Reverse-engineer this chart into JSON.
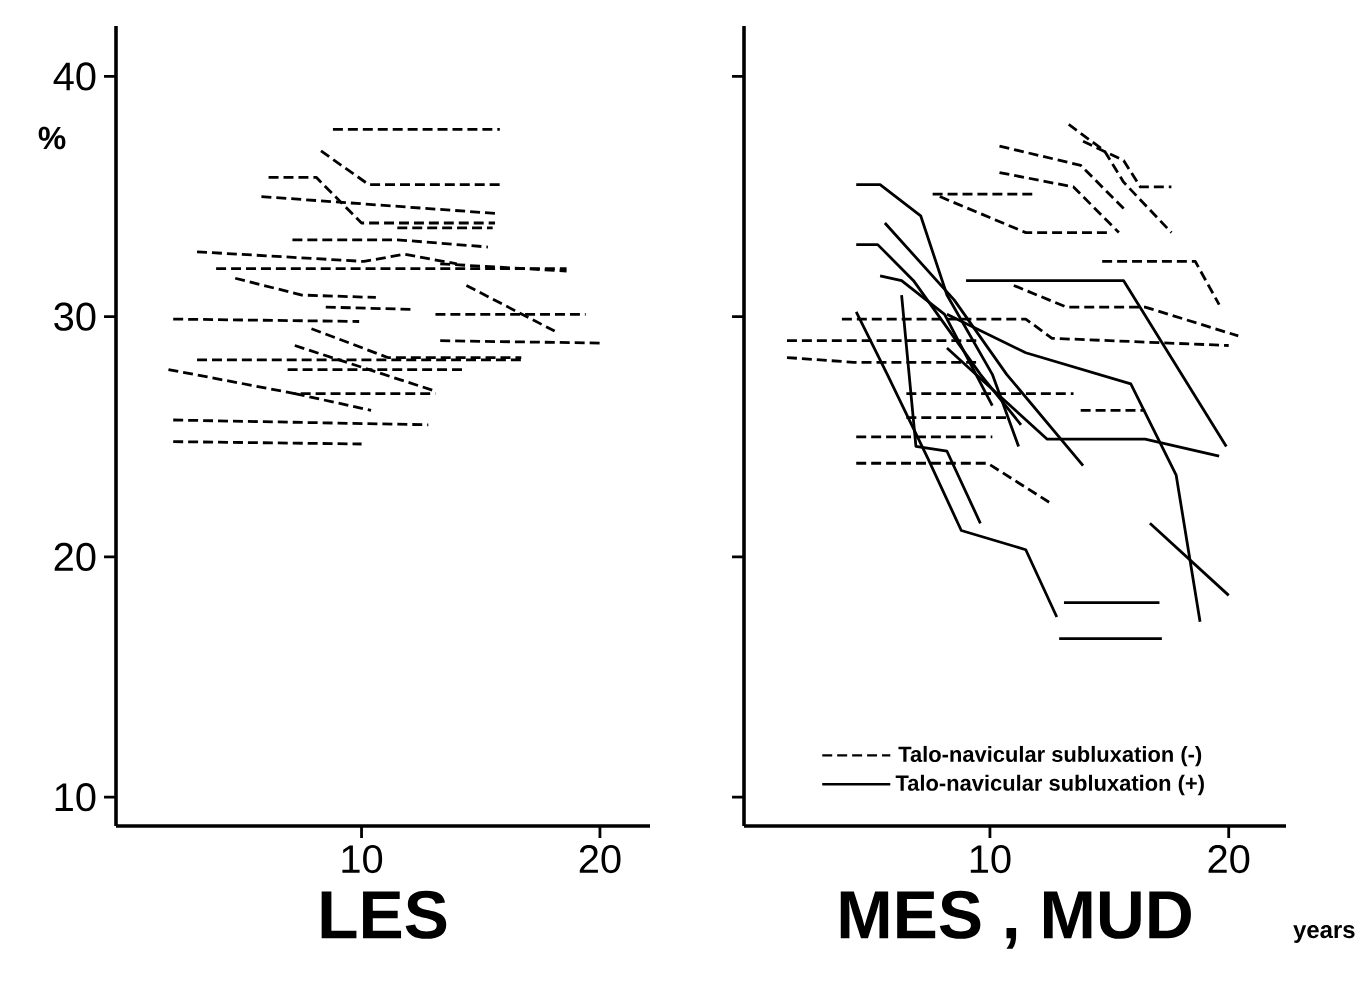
{
  "chart_data": [
    {
      "type": "line",
      "xlabel": "LES",
      "ylabel": "%",
      "xlim": [
        -0.3,
        22.1
      ],
      "ylim": [
        8.8,
        42.1
      ],
      "xticks": [
        10,
        20
      ],
      "yticks": [
        10,
        20,
        30,
        40
      ],
      "series": [
        {
          "color": "#000000",
          "line_style": "dashed",
          "x": [
            8.8,
            15.8
          ],
          "values": [
            37.8,
            37.8
          ]
        },
        {
          "color": "#000000",
          "line_style": "dashed",
          "x": [
            8.3,
            10.3,
            15.8
          ],
          "values": [
            36.9,
            35.5,
            35.5
          ]
        },
        {
          "color": "#000000",
          "line_style": "dashed",
          "x": [
            6.1,
            8.1,
            10.0,
            15.6
          ],
          "values": [
            35.8,
            35.8,
            33.9,
            33.9
          ]
        },
        {
          "color": "#000000",
          "line_style": "dashed",
          "x": [
            5.8,
            10.0,
            15.6
          ],
          "values": [
            35.0,
            34.7,
            34.3
          ]
        },
        {
          "color": "#000000",
          "line_style": "dashed",
          "x": [
            7.1,
            11.5,
            15.3
          ],
          "values": [
            33.2,
            33.2,
            32.9
          ]
        },
        {
          "color": "#000000",
          "line_style": "dashed",
          "x": [
            11.5,
            15.5
          ],
          "values": [
            33.7,
            33.7
          ]
        },
        {
          "color": "#000000",
          "line_style": "dashed",
          "x": [
            3.1,
            10.1,
            11.8,
            14.0
          ],
          "values": [
            32.7,
            32.3,
            32.6,
            32.2
          ]
        },
        {
          "color": "#000000",
          "line_style": "dashed",
          "x": [
            3.9,
            18.6
          ],
          "values": [
            32.0,
            32.0
          ]
        },
        {
          "color": "#000000",
          "line_style": "dashed",
          "x": [
            13.3,
            18.6
          ],
          "values": [
            32.2,
            31.9
          ]
        },
        {
          "color": "#000000",
          "line_style": "dashed",
          "x": [
            4.7,
            7.5,
            10.6
          ],
          "values": [
            31.6,
            30.9,
            30.8
          ]
        },
        {
          "color": "#000000",
          "line_style": "dashed",
          "x": [
            8.5,
            12.2
          ],
          "values": [
            30.4,
            30.3
          ]
        },
        {
          "color": "#000000",
          "line_style": "dashed",
          "x": [
            14.4,
            18.1
          ],
          "values": [
            31.3,
            29.4
          ]
        },
        {
          "color": "#000000",
          "line_style": "dashed",
          "x": [
            13.1,
            19.4
          ],
          "values": [
            30.1,
            30.1
          ]
        },
        {
          "color": "#000000",
          "line_style": "dashed",
          "x": [
            2.1,
            9.9
          ],
          "values": [
            29.9,
            29.8
          ]
        },
        {
          "color": "#000000",
          "line_style": "dashed",
          "x": [
            13.3,
            20.1
          ],
          "values": [
            29.0,
            28.9
          ]
        },
        {
          "color": "#000000",
          "line_style": "dashed",
          "x": [
            3.1,
            16.7
          ],
          "values": [
            28.2,
            28.2
          ]
        },
        {
          "color": "#000000",
          "line_style": "dashed",
          "x": [
            7.9,
            11.1,
            16.7
          ],
          "values": [
            29.5,
            28.3,
            28.3
          ]
        },
        {
          "color": "#000000",
          "line_style": "dashed",
          "x": [
            7.2,
            13.1
          ],
          "values": [
            28.8,
            26.9
          ]
        },
        {
          "color": "#000000",
          "line_style": "dashed",
          "x": [
            6.9,
            14.4
          ],
          "values": [
            27.8,
            27.8
          ]
        },
        {
          "color": "#000000",
          "line_style": "dashed",
          "x": [
            1.9,
            7.2,
            13.1
          ],
          "values": [
            27.8,
            26.8,
            26.8
          ]
        },
        {
          "color": "#000000",
          "line_style": "dashed",
          "x": [
            7.2,
            10.4
          ],
          "values": [
            26.8,
            26.1
          ]
        },
        {
          "color": "#000000",
          "line_style": "dashed",
          "x": [
            2.1,
            12.8
          ],
          "values": [
            25.7,
            25.5
          ]
        },
        {
          "color": "#000000",
          "line_style": "dashed",
          "x": [
            2.1,
            10.0
          ],
          "values": [
            24.8,
            24.7
          ]
        }
      ]
    },
    {
      "type": "line",
      "xlabel": "MES , MUD",
      "xlim": [
        -0.3,
        22.4
      ],
      "ylim": [
        8.8,
        42.1
      ],
      "xticks": [
        10,
        20
      ],
      "yticks": [
        10,
        20,
        30,
        40
      ],
      "tick_labels": "x",
      "legend": "bottom",
      "annotations": [
        "years"
      ],
      "series": [
        {
          "name": "Talo-navicular subluxation (-)",
          "color": "#000000",
          "line_style": "dashed",
          "x": [
            13.3,
            14.8,
            15.6,
            17.6
          ],
          "values": [
            38.0,
            36.9,
            35.6,
            33.5
          ]
        },
        {
          "color": "#000000",
          "line_style": "dashed",
          "x": [
            13.9,
            15.6,
            16.3,
            17.6
          ],
          "values": [
            37.3,
            36.5,
            35.4,
            35.4
          ]
        },
        {
          "color": "#000000",
          "line_style": "dashed",
          "x": [
            10.4,
            13.8,
            15.6
          ],
          "values": [
            37.1,
            36.3,
            34.5
          ]
        },
        {
          "color": "#000000",
          "line_style": "dashed",
          "x": [
            10.4,
            13.5,
            15.4
          ],
          "values": [
            36.0,
            35.4,
            33.5
          ]
        },
        {
          "color": "#000000",
          "line_style": "dashed",
          "x": [
            7.6,
            11.8
          ],
          "values": [
            35.1,
            35.1
          ]
        },
        {
          "color": "#000000",
          "line_style": "dashed",
          "x": [
            7.9,
            11.5,
            14.9
          ],
          "values": [
            35.0,
            33.5,
            33.5
          ]
        },
        {
          "color": "#000000",
          "line_style": "dashed",
          "x": [
            14.7,
            18.6,
            19.6
          ],
          "values": [
            32.3,
            32.3,
            30.5
          ]
        },
        {
          "color": "#000000",
          "line_style": "dashed",
          "x": [
            11.0,
            13.2,
            16.5,
            20.4
          ],
          "values": [
            31.3,
            30.4,
            30.4,
            29.2
          ]
        },
        {
          "color": "#000000",
          "line_style": "dashed",
          "x": [
            3.8,
            11.5,
            12.6,
            20.0
          ],
          "values": [
            29.9,
            29.9,
            29.1,
            28.8
          ]
        },
        {
          "color": "#000000",
          "line_style": "dashed",
          "x": [
            1.5,
            9.6
          ],
          "values": [
            29.0,
            29.0
          ]
        },
        {
          "color": "#000000",
          "line_style": "dashed",
          "x": [
            1.5,
            4.3,
            9.6
          ],
          "values": [
            28.3,
            28.1,
            28.1
          ]
        },
        {
          "color": "#000000",
          "line_style": "dashed",
          "x": [
            6.5,
            13.5
          ],
          "values": [
            26.8,
            26.8
          ]
        },
        {
          "color": "#000000",
          "line_style": "dashed",
          "x": [
            13.8,
            16.5
          ],
          "values": [
            26.1,
            26.1
          ]
        },
        {
          "color": "#000000",
          "line_style": "dashed",
          "x": [
            6.5,
            10.7
          ],
          "values": [
            25.8,
            25.8
          ]
        },
        {
          "color": "#000000",
          "line_style": "dashed",
          "x": [
            4.4,
            10.1
          ],
          "values": [
            25.0,
            25.0
          ]
        },
        {
          "color": "#000000",
          "line_style": "dashed",
          "x": [
            4.4,
            9.9,
            12.6
          ],
          "values": [
            23.9,
            23.9,
            22.2
          ]
        },
        {
          "name": "Talo-navicular subluxation (+)",
          "color": "#000000",
          "line_style": "solid",
          "x": [
            4.4,
            5.4,
            7.1,
            8.2,
            10.1,
            11.2
          ],
          "values": [
            35.5,
            35.5,
            34.2,
            30.9,
            27.6,
            24.6
          ]
        },
        {
          "color": "#000000",
          "line_style": "solid",
          "x": [
            4.4,
            5.3,
            6.8,
            9.6,
            11.3
          ],
          "values": [
            33.0,
            33.0,
            31.5,
            27.6,
            25.5
          ]
        },
        {
          "color": "#000000",
          "line_style": "solid",
          "x": [
            5.6,
            8.5,
            10.7,
            13.9
          ],
          "values": [
            33.9,
            30.7,
            27.6,
            23.8
          ]
        },
        {
          "color": "#000000",
          "line_style": "solid",
          "x": [
            5.4,
            6.3,
            8.1,
            10.1
          ],
          "values": [
            31.7,
            31.5,
            30.1,
            26.3
          ]
        },
        {
          "color": "#000000",
          "line_style": "solid",
          "x": [
            4.4,
            5.7,
            7.4,
            8.8,
            11.5,
            12.8
          ],
          "values": [
            30.2,
            27.6,
            24.1,
            21.1,
            20.3,
            17.5
          ]
        },
        {
          "color": "#000000",
          "line_style": "solid",
          "x": [
            6.3,
            6.9,
            8.2,
            9.6
          ],
          "values": [
            30.9,
            24.6,
            24.4,
            21.4
          ]
        },
        {
          "color": "#000000",
          "line_style": "solid",
          "x": [
            9.0,
            15.6,
            19.9
          ],
          "values": [
            31.5,
            31.5,
            24.6
          ]
        },
        {
          "color": "#000000",
          "line_style": "solid",
          "x": [
            8.2,
            11.5,
            15.9,
            17.8,
            18.8
          ],
          "values": [
            30.1,
            28.5,
            27.2,
            23.4,
            17.3
          ]
        },
        {
          "color": "#000000",
          "line_style": "solid",
          "x": [
            8.2,
            12.4,
            16.5,
            19.6
          ],
          "values": [
            28.7,
            24.9,
            24.9,
            24.2
          ]
        },
        {
          "color": "#000000",
          "line_style": "solid",
          "x": [
            16.7,
            20.0
          ],
          "values": [
            21.4,
            18.4
          ]
        },
        {
          "color": "#000000",
          "line_style": "solid",
          "x": [
            13.1,
            17.1
          ],
          "values": [
            18.1,
            18.1
          ]
        },
        {
          "color": "#000000",
          "line_style": "solid",
          "x": [
            12.9,
            17.2
          ],
          "values": [
            16.6,
            16.6
          ]
        }
      ]
    }
  ]
}
